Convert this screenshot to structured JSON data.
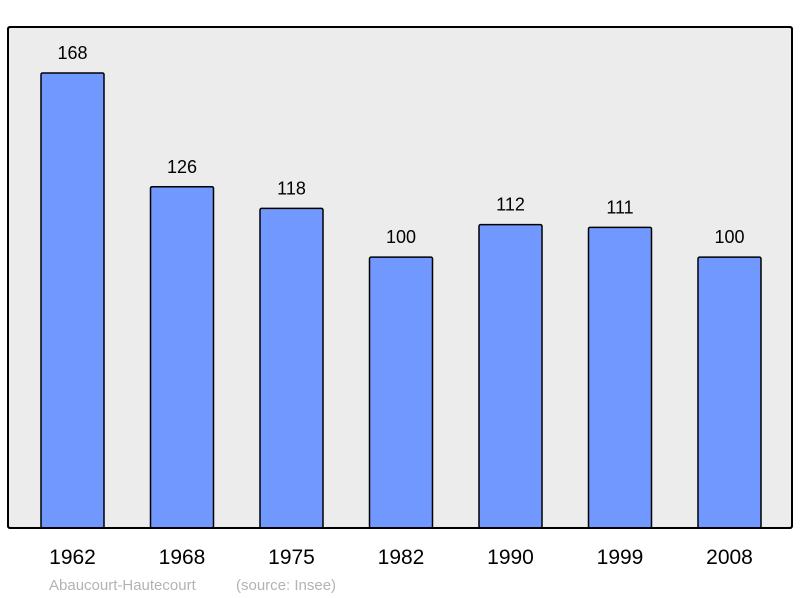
{
  "chart_data": {
    "type": "bar",
    "categories": [
      "1962",
      "1968",
      "1975",
      "1982",
      "1990",
      "1999",
      "2008"
    ],
    "values": [
      168,
      126,
      118,
      100,
      112,
      111,
      100
    ],
    "data_labels": [
      "168",
      "126",
      "118",
      "100",
      "112",
      "111",
      "100"
    ],
    "title": "",
    "xlabel": "",
    "ylabel": "",
    "ylim": [
      0,
      185
    ],
    "grid": false,
    "bar_color": "#7098ff",
    "background_color": "#ececec"
  },
  "footer": {
    "commune": "Abaucourt-Hautecourt",
    "source": "(source: Insee)"
  }
}
